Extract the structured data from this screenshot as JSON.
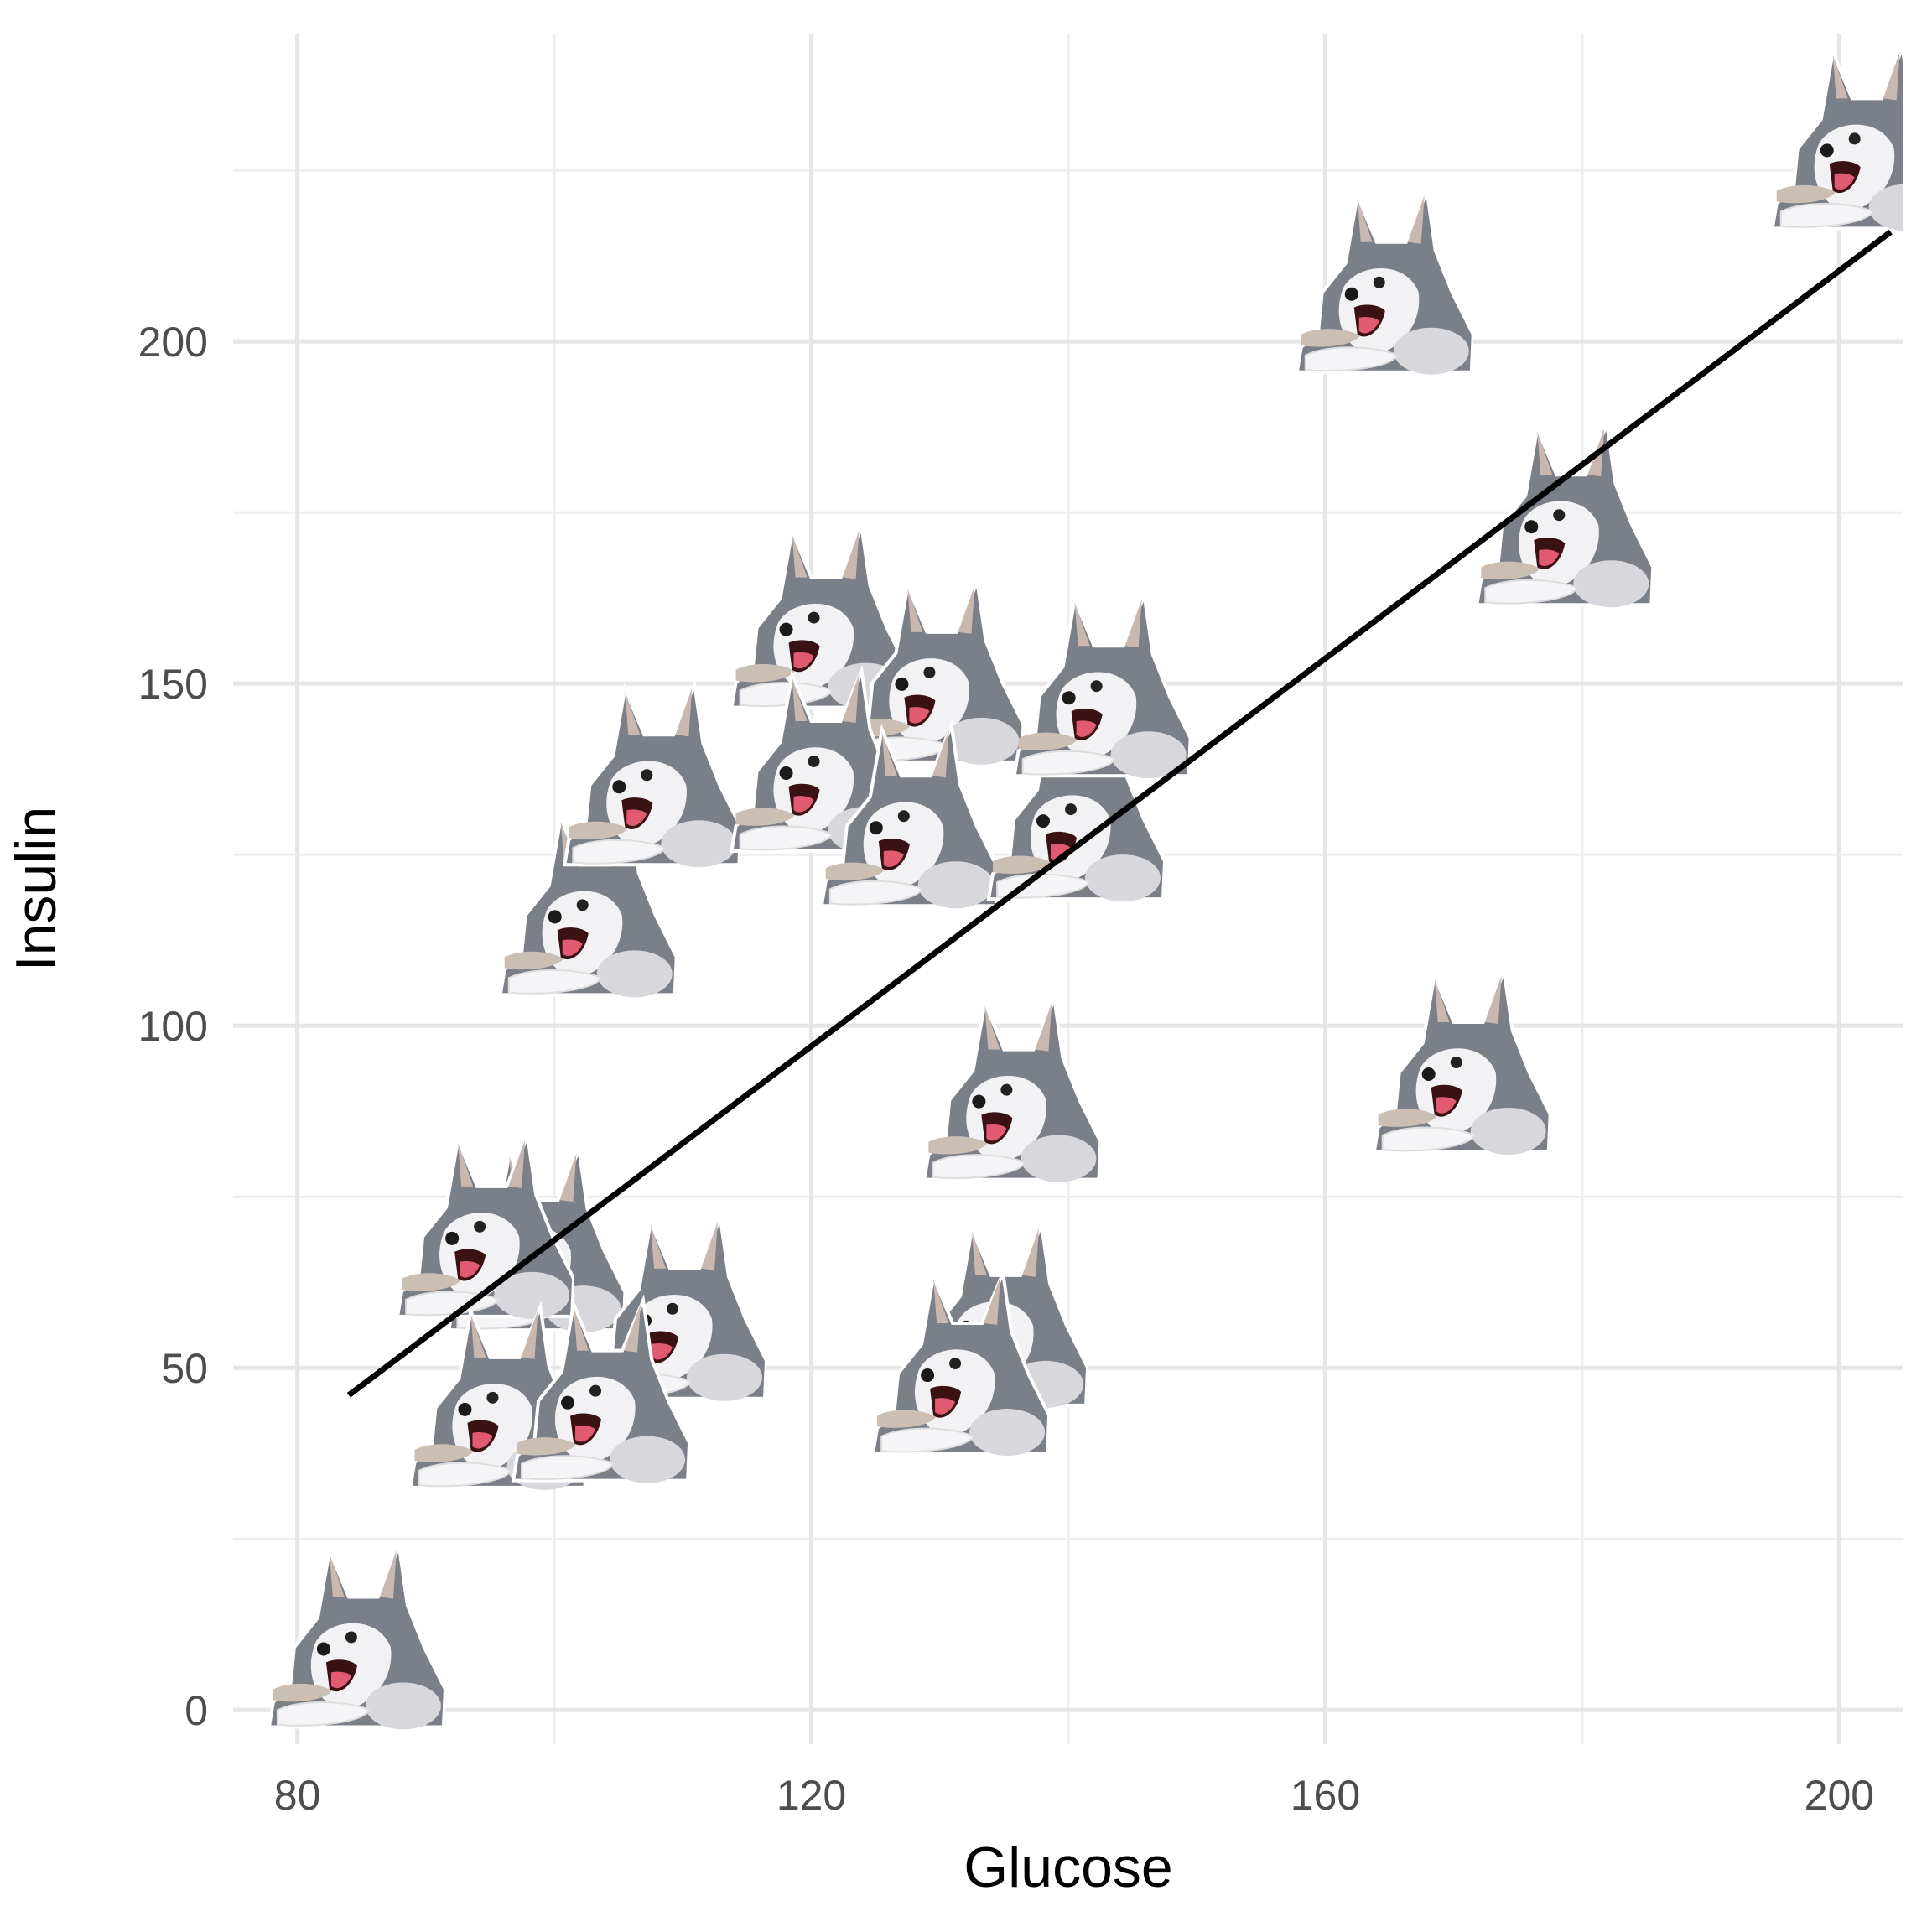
{
  "chart_data": {
    "type": "scatter",
    "title": "",
    "xlabel": "Glucose",
    "ylabel": "Insulin",
    "xlim": [
      75,
      205
    ],
    "ylim": [
      -5,
      245
    ],
    "x_ticks": [
      80,
      120,
      160,
      200
    ],
    "y_ticks": [
      0,
      50,
      100,
      150,
      200
    ],
    "x_tick_labels": [
      "80",
      "120",
      "160",
      "200"
    ],
    "y_tick_labels": [
      "0",
      "50",
      "100",
      "150",
      "200"
    ],
    "grid": true,
    "legend": "none",
    "marker_icon": "husky-dog-icon",
    "points": [
      {
        "x": 84,
        "y": 11
      },
      {
        "x": 98,
        "y": 69
      },
      {
        "x": 94,
        "y": 71
      },
      {
        "x": 109,
        "y": 59
      },
      {
        "x": 95,
        "y": 46
      },
      {
        "x": 103,
        "y": 47
      },
      {
        "x": 102,
        "y": 118
      },
      {
        "x": 107,
        "y": 137
      },
      {
        "x": 120,
        "y": 160
      },
      {
        "x": 129,
        "y": 152
      },
      {
        "x": 120,
        "y": 139
      },
      {
        "x": 127,
        "y": 131
      },
      {
        "x": 140,
        "y": 132
      },
      {
        "x": 142,
        "y": 150
      },
      {
        "x": 135,
        "y": 91
      },
      {
        "x": 134,
        "y": 58
      },
      {
        "x": 131,
        "y": 51
      },
      {
        "x": 170,
        "y": 95
      },
      {
        "x": 164,
        "y": 209
      },
      {
        "x": 178,
        "y": 175
      },
      {
        "x": 201,
        "y": 230
      }
    ],
    "trend_line": {
      "x": [
        84,
        204
      ],
      "y": [
        46,
        216
      ]
    }
  }
}
